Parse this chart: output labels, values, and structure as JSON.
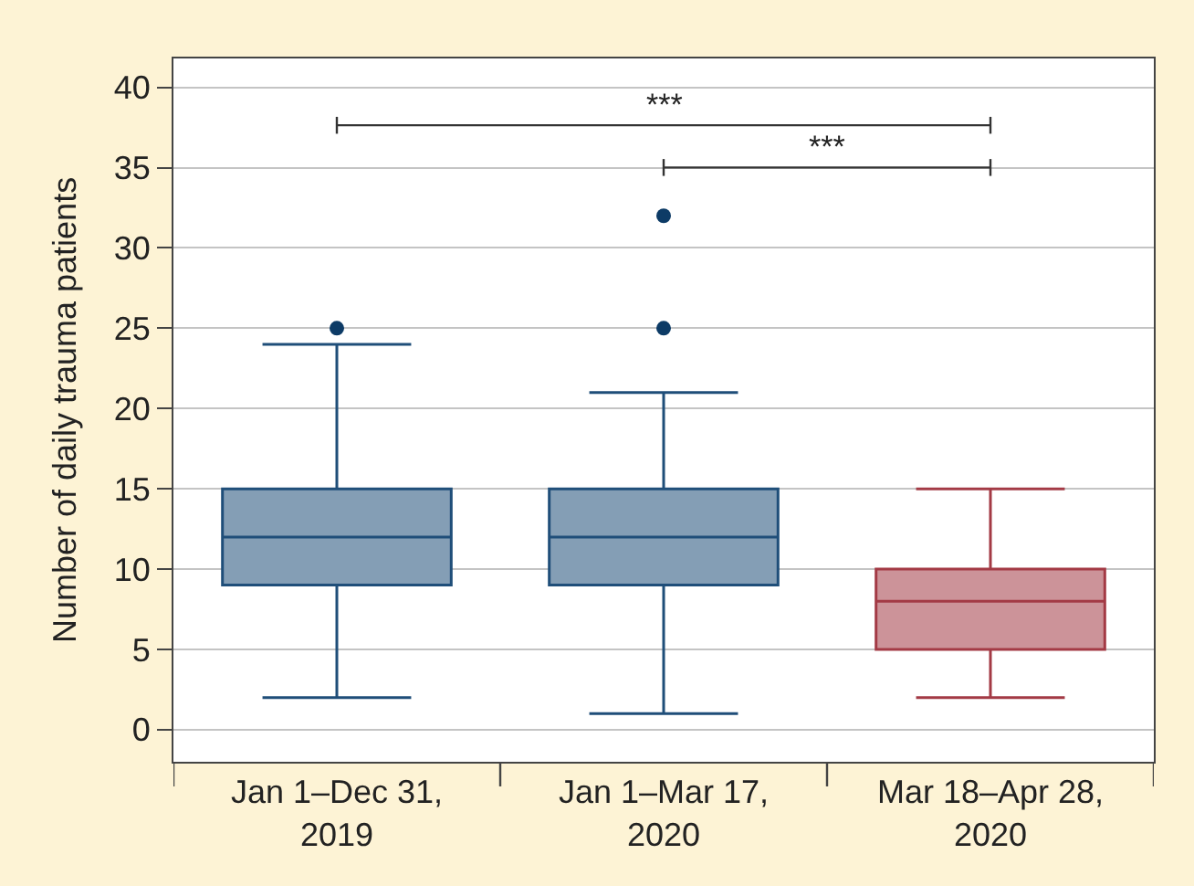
{
  "chart_data": {
    "type": "box",
    "ylabel": "Number of daily trauma patients",
    "categories": [
      "Jan 1–Dec 31,\n2019",
      "Jan 1–Mar 17,\n2020",
      "Mar 18–Apr 28,\n2020"
    ],
    "colors": [
      "#1f4e79",
      "#1f4e79",
      "#a33a45"
    ],
    "boxes": [
      {
        "low": 2,
        "q1": 9,
        "median": 12,
        "q3": 15,
        "high": 24,
        "outliers": [
          25
        ]
      },
      {
        "low": 1,
        "q1": 9,
        "median": 12,
        "q3": 15,
        "high": 21,
        "outliers": [
          25,
          32
        ]
      },
      {
        "low": 2,
        "q1": 5,
        "median": 8,
        "q3": 10,
        "high": 15
      }
    ],
    "ylim": [
      -2,
      41.8
    ],
    "yticks": [
      0,
      5,
      10,
      15,
      20,
      25,
      30,
      35,
      40
    ],
    "grid": "y",
    "annotations": [
      "***",
      "***"
    ]
  }
}
